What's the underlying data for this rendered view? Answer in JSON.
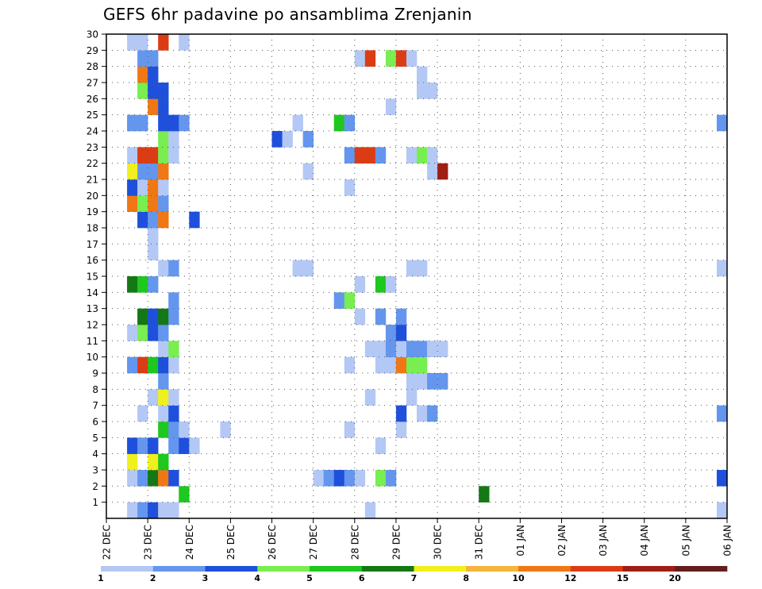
{
  "chart_data": {
    "type": "heatmap",
    "title": "GEFS 6hr padavine po ansamblima Zrenjanin",
    "xlabel": "",
    "ylabel": "",
    "x_ticks": [
      "22 DEC",
      "23 DEC",
      "24 DEC",
      "25 DEC",
      "26 DEC",
      "27 DEC",
      "28 DEC",
      "29 DEC",
      "30 DEC",
      "31 DEC",
      "01 JAN",
      "02 JAN",
      "03 JAN",
      "04 JAN",
      "05 JAN",
      "06 JAN"
    ],
    "y_ticks": [
      "1",
      "2",
      "3",
      "4",
      "5",
      "6",
      "7",
      "8",
      "9",
      "10",
      "11",
      "12",
      "13",
      "14",
      "15",
      "16",
      "17",
      "18",
      "19",
      "20",
      "21",
      "22",
      "23",
      "24",
      "25",
      "26",
      "27",
      "28",
      "29",
      "30"
    ],
    "y_range": [
      0,
      30
    ],
    "time_step": "6hr",
    "time_steps_total": 60,
    "grid": true,
    "colorbar": {
      "labels": [
        "1",
        "2",
        "3",
        "4",
        "5",
        "6",
        "7",
        "8",
        "10",
        "12",
        "15",
        "20"
      ],
      "colors": [
        "#b4c8f5",
        "#6496ee",
        "#1e50dc",
        "#78ee50",
        "#1ec81e",
        "#147814",
        "#f0f01e",
        "#f5b43c",
        "#f07814",
        "#dc3c14",
        "#a01e14",
        "#641e1e"
      ]
    },
    "cells": [
      [
        3,
        1,
        1
      ],
      [
        4,
        1,
        2
      ],
      [
        5,
        1,
        3
      ],
      [
        6,
        1,
        1
      ],
      [
        7,
        1,
        1
      ],
      [
        26,
        1,
        1
      ],
      [
        60,
        1,
        1
      ],
      [
        8,
        2,
        5
      ],
      [
        37,
        2,
        6
      ],
      [
        3,
        3,
        1
      ],
      [
        4,
        3,
        2
      ],
      [
        5,
        3,
        6
      ],
      [
        6,
        3,
        9
      ],
      [
        7,
        3,
        3
      ],
      [
        21,
        3,
        1
      ],
      [
        22,
        3,
        2
      ],
      [
        23,
        3,
        3
      ],
      [
        24,
        3,
        2
      ],
      [
        25,
        3,
        1
      ],
      [
        27,
        3,
        4
      ],
      [
        28,
        3,
        2
      ],
      [
        60,
        3,
        3
      ],
      [
        3,
        4,
        7
      ],
      [
        5,
        4,
        7
      ],
      [
        6,
        4,
        5
      ],
      [
        3,
        5,
        3
      ],
      [
        4,
        5,
        2
      ],
      [
        5,
        5,
        3
      ],
      [
        7,
        5,
        2
      ],
      [
        8,
        5,
        3
      ],
      [
        9,
        5,
        1
      ],
      [
        27,
        5,
        1
      ],
      [
        6,
        6,
        5
      ],
      [
        7,
        6,
        2
      ],
      [
        8,
        6,
        1
      ],
      [
        12,
        6,
        1
      ],
      [
        24,
        6,
        1
      ],
      [
        29,
        6,
        1
      ],
      [
        4,
        7,
        1
      ],
      [
        6,
        7,
        1
      ],
      [
        7,
        7,
        3
      ],
      [
        29,
        7,
        3
      ],
      [
        31,
        7,
        1
      ],
      [
        32,
        7,
        2
      ],
      [
        60,
        7,
        2
      ],
      [
        5,
        8,
        1
      ],
      [
        6,
        8,
        7
      ],
      [
        7,
        8,
        1
      ],
      [
        26,
        8,
        1
      ],
      [
        30,
        8,
        1
      ],
      [
        6,
        9,
        2
      ],
      [
        30,
        9,
        1
      ],
      [
        31,
        9,
        1
      ],
      [
        32,
        9,
        2
      ],
      [
        33,
        9,
        2
      ],
      [
        3,
        10,
        2
      ],
      [
        4,
        10,
        10
      ],
      [
        5,
        10,
        5
      ],
      [
        6,
        10,
        3
      ],
      [
        7,
        10,
        1
      ],
      [
        24,
        10,
        1
      ],
      [
        27,
        10,
        1
      ],
      [
        28,
        10,
        1
      ],
      [
        29,
        10,
        9
      ],
      [
        30,
        10,
        4
      ],
      [
        31,
        10,
        4
      ],
      [
        6,
        11,
        1
      ],
      [
        7,
        11,
        4
      ],
      [
        26,
        11,
        1
      ],
      [
        27,
        11,
        1
      ],
      [
        28,
        11,
        2
      ],
      [
        29,
        11,
        1
      ],
      [
        30,
        11,
        2
      ],
      [
        31,
        11,
        2
      ],
      [
        32,
        11,
        1
      ],
      [
        33,
        11,
        1
      ],
      [
        3,
        12,
        1
      ],
      [
        4,
        12,
        4
      ],
      [
        5,
        12,
        3
      ],
      [
        6,
        12,
        2
      ],
      [
        28,
        12,
        2
      ],
      [
        29,
        12,
        3
      ],
      [
        4,
        13,
        6
      ],
      [
        5,
        13,
        3
      ],
      [
        6,
        13,
        6
      ],
      [
        7,
        13,
        2
      ],
      [
        25,
        13,
        1
      ],
      [
        27,
        13,
        2
      ],
      [
        29,
        13,
        2
      ],
      [
        7,
        14,
        2
      ],
      [
        23,
        14,
        2
      ],
      [
        24,
        14,
        4
      ],
      [
        3,
        15,
        6
      ],
      [
        4,
        15,
        5
      ],
      [
        5,
        15,
        2
      ],
      [
        25,
        15,
        1
      ],
      [
        27,
        15,
        5
      ],
      [
        28,
        15,
        1
      ],
      [
        6,
        16,
        1
      ],
      [
        7,
        16,
        2
      ],
      [
        19,
        16,
        1
      ],
      [
        20,
        16,
        1
      ],
      [
        30,
        16,
        1
      ],
      [
        31,
        16,
        1
      ],
      [
        60,
        16,
        1
      ],
      [
        5,
        17,
        1
      ],
      [
        5,
        18,
        1
      ],
      [
        4,
        19,
        3
      ],
      [
        5,
        19,
        2
      ],
      [
        6,
        19,
        9
      ],
      [
        9,
        19,
        3
      ],
      [
        3,
        20,
        9
      ],
      [
        4,
        20,
        4
      ],
      [
        5,
        20,
        9
      ],
      [
        6,
        20,
        2
      ],
      [
        3,
        21,
        3
      ],
      [
        4,
        21,
        1
      ],
      [
        5,
        21,
        9
      ],
      [
        6,
        21,
        1
      ],
      [
        24,
        21,
        1
      ],
      [
        3,
        22,
        7
      ],
      [
        4,
        22,
        2
      ],
      [
        5,
        22,
        2
      ],
      [
        6,
        22,
        9
      ],
      [
        20,
        22,
        1
      ],
      [
        32,
        22,
        1
      ],
      [
        33,
        22,
        11
      ],
      [
        3,
        23,
        1
      ],
      [
        4,
        23,
        10
      ],
      [
        5,
        23,
        10
      ],
      [
        6,
        23,
        4
      ],
      [
        7,
        23,
        1
      ],
      [
        24,
        23,
        2
      ],
      [
        25,
        23,
        10
      ],
      [
        26,
        23,
        10
      ],
      [
        27,
        23,
        2
      ],
      [
        30,
        23,
        1
      ],
      [
        31,
        23,
        4
      ],
      [
        32,
        23,
        1
      ],
      [
        6,
        24,
        4
      ],
      [
        7,
        24,
        1
      ],
      [
        17,
        24,
        3
      ],
      [
        18,
        24,
        1
      ],
      [
        20,
        24,
        2
      ],
      [
        3,
        25,
        2
      ],
      [
        4,
        25,
        2
      ],
      [
        6,
        25,
        3
      ],
      [
        7,
        25,
        3
      ],
      [
        8,
        25,
        2
      ],
      [
        19,
        25,
        1
      ],
      [
        23,
        25,
        5
      ],
      [
        24,
        25,
        2
      ],
      [
        60,
        25,
        2
      ],
      [
        5,
        26,
        9
      ],
      [
        6,
        26,
        3
      ],
      [
        28,
        26,
        1
      ],
      [
        4,
        27,
        4
      ],
      [
        5,
        27,
        3
      ],
      [
        6,
        27,
        3
      ],
      [
        31,
        27,
        1
      ],
      [
        32,
        27,
        1
      ],
      [
        4,
        28,
        9
      ],
      [
        5,
        28,
        3
      ],
      [
        31,
        28,
        1
      ],
      [
        4,
        29,
        2
      ],
      [
        5,
        29,
        2
      ],
      [
        25,
        29,
        1
      ],
      [
        26,
        29,
        10
      ],
      [
        28,
        29,
        4
      ],
      [
        29,
        29,
        10
      ],
      [
        30,
        29,
        1
      ],
      [
        3,
        30,
        1
      ],
      [
        4,
        30,
        1
      ],
      [
        6,
        30,
        10
      ],
      [
        8,
        30,
        1
      ]
    ]
  }
}
